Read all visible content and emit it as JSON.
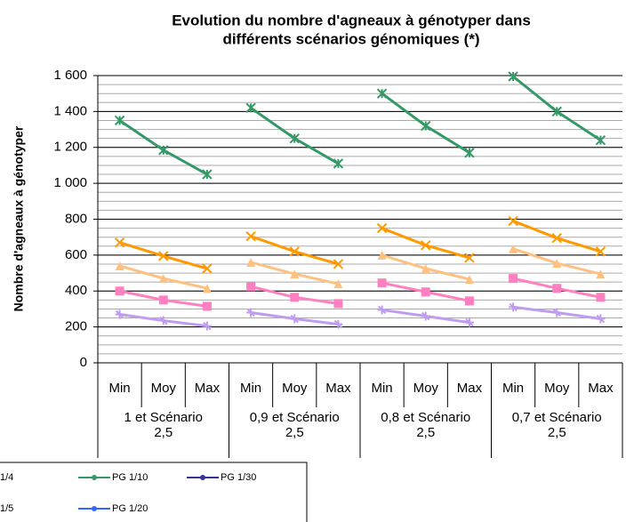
{
  "chart_data": {
    "type": "line",
    "title": [
      "Evolution du nombre d'agneaux à génotyper dans",
      "différents scénarios génomiques (*)"
    ],
    "y_label": "Nombre d'agneaux à génotyper",
    "categories": [
      "Min",
      "Moy",
      "Max",
      "Min",
      "Moy",
      "Max",
      "Min",
      "Moy",
      "Max",
      "Min",
      "Moy",
      "Max"
    ],
    "groups": [
      [
        "1 et Scénario",
        "2,5"
      ],
      [
        "0,9 et Scénario",
        "2,5"
      ],
      [
        "0,8 et Scénario",
        "2,5"
      ],
      [
        "0,7 et Scénario",
        "2,5"
      ]
    ],
    "group_size": 3,
    "ylim": [
      0,
      1600
    ],
    "yticks": [
      0,
      200,
      400,
      600,
      800,
      {
        "value": 1000,
        "label": "1 000"
      },
      {
        "value": 1200,
        "label": "1 200"
      },
      {
        "value": 1400,
        "label": "1 400"
      },
      {
        "value": 1600,
        "label": "1 600"
      }
    ],
    "minor_step": 50,
    "grid": true,
    "series": [
      {
        "color": "#339966",
        "marker": "star",
        "values": [
          1350,
          1185,
          1050,
          1420,
          1250,
          1110,
          1500,
          1320,
          1170,
          1595,
          1400,
          1240
        ]
      },
      {
        "color": "#ff9900",
        "marker": "x",
        "values": [
          670,
          595,
          525,
          705,
          620,
          550,
          750,
          655,
          585,
          790,
          695,
          620
        ]
      },
      {
        "color": "#ffc080",
        "marker": "triangle",
        "values": [
          540,
          470,
          415,
          560,
          495,
          440,
          600,
          525,
          465,
          635,
          555,
          495
        ]
      },
      {
        "color": "#ff80c0",
        "marker": "square",
        "values": [
          400,
          350,
          315,
          425,
          365,
          330,
          445,
          395,
          345,
          470,
          415,
          365
        ]
      },
      {
        "color": "#c09cf0",
        "marker": "diamond",
        "values": [
          270,
          235,
          205,
          280,
          245,
          215,
          295,
          260,
          225,
          310,
          280,
          245
        ]
      }
    ],
    "legend": [
      {
        "label": "1/4",
        "color": null
      },
      {
        "label": "1/5",
        "color": null
      },
      {
        "label": "PG 1/10",
        "color": "#339966"
      },
      {
        "label": "PG 1/20",
        "color": "#3366ff"
      },
      {
        "label": "PG 1/30",
        "color": "#333399"
      }
    ]
  }
}
